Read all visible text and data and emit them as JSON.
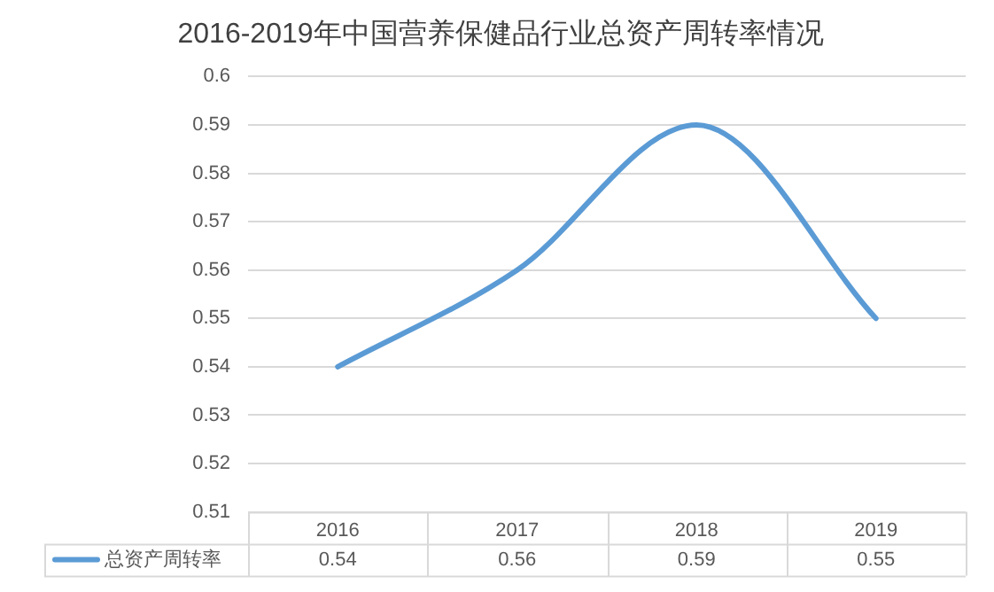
{
  "chart_data": {
    "type": "line",
    "title": "2016-2019年中国营养保健品行业总资产周转率情况",
    "categories": [
      "2016",
      "2017",
      "2018",
      "2019"
    ],
    "series": [
      {
        "name": "总资产周转率",
        "color": "#5b9bd5",
        "values": [
          0.54,
          0.56,
          0.59,
          0.55
        ]
      }
    ],
    "ylim": [
      0.51,
      0.6
    ],
    "yticks": [
      0.51,
      0.52,
      0.53,
      0.54,
      0.55,
      0.56,
      0.57,
      0.58,
      0.59,
      0.6
    ],
    "grid": "y",
    "legend": "bottom left",
    "marker": "none",
    "data_labels": true
  }
}
